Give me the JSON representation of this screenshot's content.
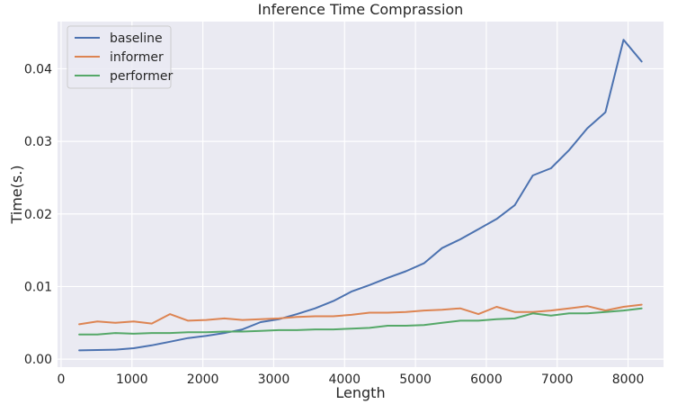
{
  "chart_data": {
    "type": "line",
    "title": "Inference Time Comprassion",
    "xlabel": "Length",
    "ylabel": "Time(s.)",
    "xlim": [
      -50,
      8500
    ],
    "ylim": [
      -0.0011,
      0.0465
    ],
    "x_ticks": [
      0,
      1000,
      2000,
      3000,
      4000,
      5000,
      6000,
      7000,
      8000
    ],
    "y_ticks": [
      0.0,
      0.01,
      0.02,
      0.03,
      0.04
    ],
    "y_tick_labels": [
      "0.00",
      "0.01",
      "0.02",
      "0.03",
      "0.04"
    ],
    "grid": true,
    "legend_position": "top-left",
    "background_color": "#eaeaf2",
    "x": [
      256,
      512,
      768,
      1024,
      1280,
      1536,
      1792,
      2048,
      2304,
      2560,
      2816,
      3072,
      3328,
      3584,
      3840,
      4096,
      4352,
      4608,
      4864,
      5120,
      5376,
      5632,
      5888,
      6144,
      6400,
      6656,
      6912,
      7168,
      7424,
      7680,
      7936,
      8192
    ],
    "series": [
      {
        "name": "baseline",
        "color": "#4c72b0",
        "values": [
          0.0012,
          0.00125,
          0.0013,
          0.0015,
          0.0019,
          0.0024,
          0.0029,
          0.0032,
          0.0036,
          0.0041,
          0.0051,
          0.0055,
          0.0062,
          0.007,
          0.008,
          0.0093,
          0.0102,
          0.0112,
          0.0121,
          0.0132,
          0.0153,
          0.0165,
          0.0179,
          0.0193,
          0.0212,
          0.0253,
          0.0263,
          0.0288,
          0.0318,
          0.034,
          0.044,
          0.041
        ]
      },
      {
        "name": "informer",
        "color": "#dd8452",
        "values": [
          0.0048,
          0.0052,
          0.005,
          0.0052,
          0.0049,
          0.0062,
          0.0053,
          0.0054,
          0.0056,
          0.0054,
          0.0055,
          0.0056,
          0.0058,
          0.0059,
          0.0059,
          0.0061,
          0.0064,
          0.0064,
          0.0065,
          0.0067,
          0.0068,
          0.007,
          0.0062,
          0.0072,
          0.0065,
          0.0065,
          0.0067,
          0.007,
          0.0073,
          0.0067,
          0.0072,
          0.0075
        ]
      },
      {
        "name": "performer",
        "color": "#55a868",
        "values": [
          0.0034,
          0.0034,
          0.0036,
          0.0035,
          0.0036,
          0.0036,
          0.0037,
          0.0037,
          0.0038,
          0.0038,
          0.0039,
          0.004,
          0.004,
          0.0041,
          0.0041,
          0.0042,
          0.0043,
          0.0046,
          0.0046,
          0.0047,
          0.005,
          0.0053,
          0.0053,
          0.0055,
          0.0056,
          0.0063,
          0.006,
          0.0063,
          0.0063,
          0.0065,
          0.0067,
          0.007
        ]
      }
    ]
  }
}
